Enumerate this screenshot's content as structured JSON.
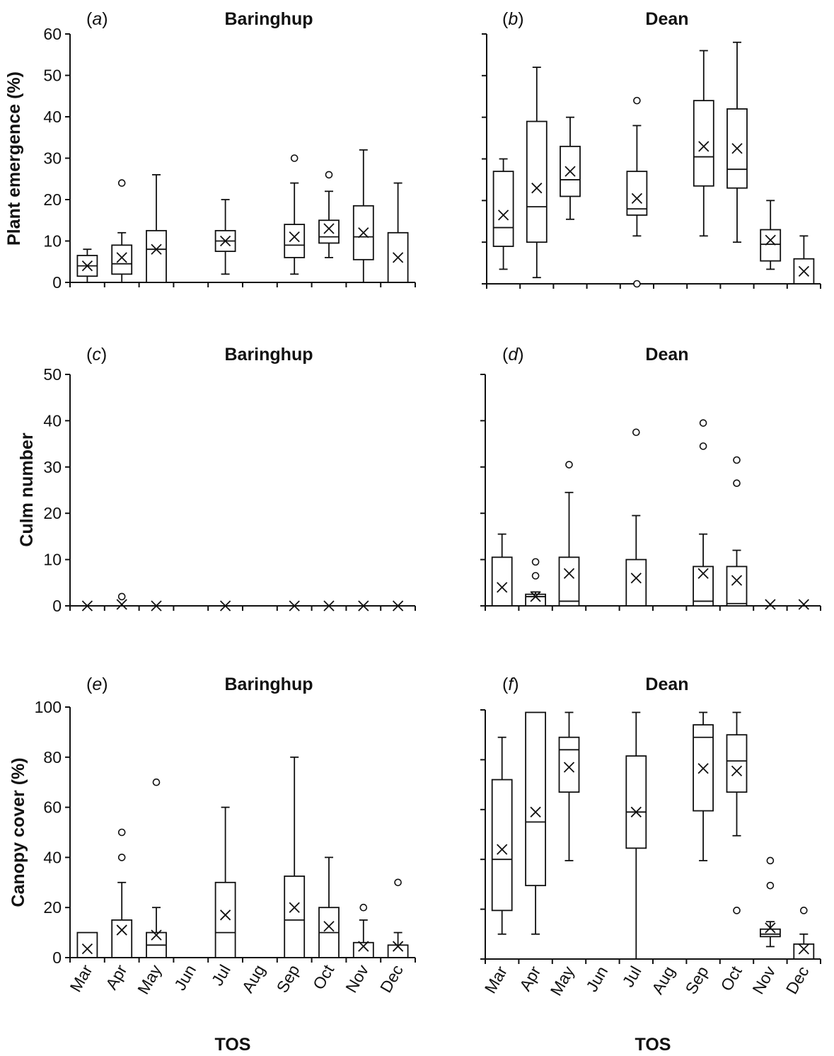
{
  "figure": {
    "xlabel_shared": "TOS"
  },
  "chart_data": [
    {
      "id": "a",
      "panel_label": "a",
      "type": "box",
      "title": "Baringhup",
      "ylabel": "Plant emergence (%)",
      "ylim": [
        0,
        60
      ],
      "yticks": [
        0,
        10,
        20,
        30,
        40,
        50,
        60
      ],
      "show_tick_labels": true,
      "categories": [
        "Mar",
        "Apr",
        "May",
        "Jun",
        "Jul",
        "Aug",
        "Sep",
        "Oct",
        "Nov",
        "Dec"
      ],
      "boxes": [
        {
          "cat": "Mar",
          "min": 0,
          "q1": 1.5,
          "median": 4,
          "q3": 6.5,
          "max": 8,
          "mean": 4,
          "outliers": []
        },
        {
          "cat": "Apr",
          "min": 0,
          "q1": 2,
          "median": 4.5,
          "q3": 9,
          "max": 12,
          "mean": 6,
          "outliers": [
            24
          ]
        },
        {
          "cat": "May",
          "min": 0,
          "q1": 0,
          "median": 8,
          "q3": 12.5,
          "max": 26,
          "mean": 8,
          "outliers": []
        },
        {
          "cat": "Jul",
          "min": 2,
          "q1": 7.5,
          "median": 10,
          "q3": 12.5,
          "max": 20,
          "mean": 10,
          "outliers": []
        },
        {
          "cat": "Sep",
          "min": 2,
          "q1": 6,
          "median": 9,
          "q3": 14,
          "max": 24,
          "mean": 11,
          "outliers": [
            30
          ]
        },
        {
          "cat": "Oct",
          "min": 6,
          "q1": 9.5,
          "median": 11,
          "q3": 15,
          "max": 22,
          "mean": 13,
          "outliers": [
            26
          ]
        },
        {
          "cat": "Nov",
          "min": 0,
          "q1": 5.5,
          "median": 11,
          "q3": 18.5,
          "max": 32,
          "mean": 12,
          "outliers": []
        },
        {
          "cat": "Dec",
          "min": 0,
          "q1": 0,
          "median": 0,
          "q3": 12,
          "max": 24,
          "mean": 6,
          "outliers": []
        }
      ]
    },
    {
      "id": "b",
      "panel_label": "b",
      "type": "box",
      "title": "Dean",
      "ylabel": "",
      "ylim": [
        0,
        60
      ],
      "yticks": [
        0,
        10,
        20,
        30,
        40,
        50,
        60
      ],
      "show_tick_labels": false,
      "categories": [
        "Mar",
        "Apr",
        "May",
        "Jun",
        "Jul",
        "Aug",
        "Sep",
        "Oct",
        "Nov",
        "Dec"
      ],
      "boxes": [
        {
          "cat": "Mar",
          "min": 3.5,
          "q1": 9,
          "median": 13.5,
          "q3": 27,
          "max": 30,
          "mean": 16.5,
          "outliers": []
        },
        {
          "cat": "Apr",
          "min": 1.5,
          "q1": 10,
          "median": 18.5,
          "q3": 39,
          "max": 52,
          "mean": 23,
          "outliers": []
        },
        {
          "cat": "May",
          "min": 15.5,
          "q1": 21,
          "median": 25,
          "q3": 33,
          "max": 40,
          "mean": 27,
          "outliers": []
        },
        {
          "cat": "Jul",
          "min": 11.5,
          "q1": 16.5,
          "median": 18,
          "q3": 27,
          "max": 38,
          "mean": 20.5,
          "outliers": [
            44,
            0
          ]
        },
        {
          "cat": "Sep",
          "min": 11.5,
          "q1": 23.5,
          "median": 30.5,
          "q3": 44,
          "max": 56,
          "mean": 33,
          "outliers": []
        },
        {
          "cat": "Oct",
          "min": 10,
          "q1": 23,
          "median": 27.5,
          "q3": 42,
          "max": 58,
          "mean": 32.5,
          "outliers": []
        },
        {
          "cat": "Nov",
          "min": 3.5,
          "q1": 5.5,
          "median": 9.5,
          "q3": 13,
          "max": 20,
          "mean": 10.5,
          "outliers": []
        },
        {
          "cat": "Dec",
          "min": 0,
          "q1": 0,
          "median": 0,
          "q3": 6,
          "max": 11.5,
          "mean": 3,
          "outliers": []
        }
      ]
    },
    {
      "id": "c",
      "panel_label": "c",
      "type": "box",
      "title": "Baringhup",
      "ylabel": "Culm number",
      "ylim": [
        0,
        50
      ],
      "yticks": [
        0,
        10,
        20,
        30,
        40,
        50
      ],
      "show_tick_labels": true,
      "categories": [
        "Mar",
        "Apr",
        "May",
        "Jun",
        "Jul",
        "Aug",
        "Sep",
        "Oct",
        "Nov",
        "Dec"
      ],
      "boxes": [
        {
          "cat": "Mar",
          "min": 0,
          "q1": 0,
          "median": 0,
          "q3": 0,
          "max": 0,
          "mean": 0,
          "outliers": []
        },
        {
          "cat": "Apr",
          "min": 0,
          "q1": 0,
          "median": 0,
          "q3": 0,
          "max": 0,
          "mean": 0.3,
          "outliers": [
            2
          ]
        },
        {
          "cat": "May",
          "min": 0,
          "q1": 0,
          "median": 0,
          "q3": 0,
          "max": 0,
          "mean": 0,
          "outliers": []
        },
        {
          "cat": "Jul",
          "min": 0,
          "q1": 0,
          "median": 0,
          "q3": 0,
          "max": 0,
          "mean": 0,
          "outliers": []
        },
        {
          "cat": "Sep",
          "min": 0,
          "q1": 0,
          "median": 0,
          "q3": 0,
          "max": 0,
          "mean": 0,
          "outliers": []
        },
        {
          "cat": "Oct",
          "min": 0,
          "q1": 0,
          "median": 0,
          "q3": 0,
          "max": 0,
          "mean": 0,
          "outliers": []
        },
        {
          "cat": "Nov",
          "min": 0,
          "q1": 0,
          "median": 0,
          "q3": 0,
          "max": 0,
          "mean": 0,
          "outliers": []
        },
        {
          "cat": "Dec",
          "min": 0,
          "q1": 0,
          "median": 0,
          "q3": 0,
          "max": 0,
          "mean": 0,
          "outliers": []
        }
      ]
    },
    {
      "id": "d",
      "panel_label": "d",
      "type": "box",
      "title": "Dean",
      "ylabel": "",
      "ylim": [
        0,
        50
      ],
      "yticks": [
        0,
        10,
        20,
        30,
        40,
        50
      ],
      "show_tick_labels": false,
      "categories": [
        "Mar",
        "Apr",
        "May",
        "Jun",
        "Jul",
        "Aug",
        "Sep",
        "Oct",
        "Nov",
        "Dec"
      ],
      "boxes": [
        {
          "cat": "Mar",
          "min": 0,
          "q1": 0,
          "median": 0,
          "q3": 10.5,
          "max": 15.5,
          "mean": 4,
          "outliers": []
        },
        {
          "cat": "Apr",
          "min": 0,
          "q1": 0,
          "median": 2,
          "q3": 2.5,
          "max": 3,
          "mean": 2,
          "outliers": [
            9.5,
            6.5
          ]
        },
        {
          "cat": "May",
          "min": 0,
          "q1": 0,
          "median": 1,
          "q3": 10.5,
          "max": 24.5,
          "mean": 7,
          "outliers": [
            30.5
          ]
        },
        {
          "cat": "Jul",
          "min": 0,
          "q1": 0,
          "median": 0,
          "q3": 10,
          "max": 19.5,
          "mean": 6,
          "outliers": [
            37.5
          ]
        },
        {
          "cat": "Sep",
          "min": 0,
          "q1": 0,
          "median": 1,
          "q3": 8.5,
          "max": 15.5,
          "mean": 7,
          "outliers": [
            39.5,
            34.5
          ]
        },
        {
          "cat": "Oct",
          "min": 0,
          "q1": 0,
          "median": 0.5,
          "q3": 8.5,
          "max": 12,
          "mean": 5.5,
          "outliers": [
            31.5,
            26.5
          ]
        },
        {
          "cat": "Nov",
          "min": 0,
          "q1": 0,
          "median": 0,
          "q3": 0,
          "max": 0,
          "mean": 0.3,
          "outliers": []
        },
        {
          "cat": "Dec",
          "min": 0,
          "q1": 0,
          "median": 0,
          "q3": 0,
          "max": 0,
          "mean": 0.3,
          "outliers": []
        }
      ]
    },
    {
      "id": "e",
      "panel_label": "e",
      "type": "box",
      "title": "Baringhup",
      "ylabel": "Canopy cover (%)",
      "ylim": [
        0,
        100
      ],
      "yticks": [
        0,
        20,
        40,
        60,
        80,
        100
      ],
      "show_tick_labels": true,
      "categories": [
        "Mar",
        "Apr",
        "May",
        "Jun",
        "Jul",
        "Aug",
        "Sep",
        "Oct",
        "Nov",
        "Dec"
      ],
      "boxes": [
        {
          "cat": "Mar",
          "min": 0,
          "q1": 0,
          "median": 0,
          "q3": 10,
          "max": 10,
          "mean": 3.5,
          "outliers": []
        },
        {
          "cat": "Apr",
          "min": 0,
          "q1": 0,
          "median": 0,
          "q3": 15,
          "max": 30,
          "mean": 11,
          "outliers": [
            50,
            40
          ]
        },
        {
          "cat": "May",
          "min": 0,
          "q1": 0,
          "median": 5,
          "q3": 10,
          "max": 20,
          "mean": 9,
          "outliers": [
            70
          ]
        },
        {
          "cat": "Jul",
          "min": 0,
          "q1": 0,
          "median": 10,
          "q3": 30,
          "max": 60,
          "mean": 17,
          "outliers": []
        },
        {
          "cat": "Sep",
          "min": 0,
          "q1": 0,
          "median": 15,
          "q3": 32.5,
          "max": 80,
          "mean": 20,
          "outliers": []
        },
        {
          "cat": "Oct",
          "min": 0,
          "q1": 0,
          "median": 10,
          "q3": 20,
          "max": 40,
          "mean": 12.5,
          "outliers": []
        },
        {
          "cat": "Nov",
          "min": 0,
          "q1": 0,
          "median": 0,
          "q3": 6,
          "max": 15,
          "mean": 4.5,
          "outliers": [
            20
          ]
        },
        {
          "cat": "Dec",
          "min": 0,
          "q1": 0,
          "median": 0,
          "q3": 5,
          "max": 10,
          "mean": 4.5,
          "outliers": [
            30
          ]
        }
      ]
    },
    {
      "id": "f",
      "panel_label": "f",
      "type": "box",
      "title": "Dean",
      "ylabel": "",
      "ylim": [
        0,
        100
      ],
      "yticks": [
        0,
        20,
        40,
        60,
        80,
        100
      ],
      "show_tick_labels": false,
      "categories": [
        "Mar",
        "Apr",
        "May",
        "Jun",
        "Jul",
        "Aug",
        "Sep",
        "Oct",
        "Nov",
        "Dec"
      ],
      "boxes": [
        {
          "cat": "Mar",
          "min": 10,
          "q1": 19.5,
          "median": 40,
          "q3": 72,
          "max": 89,
          "mean": 44,
          "outliers": []
        },
        {
          "cat": "Apr",
          "min": 10,
          "q1": 29.5,
          "median": 55,
          "q3": 99,
          "max": 99,
          "mean": 59,
          "outliers": []
        },
        {
          "cat": "May",
          "min": 39.5,
          "q1": 67,
          "median": 84,
          "q3": 89,
          "max": 99,
          "mean": 77,
          "outliers": []
        },
        {
          "cat": "Jul",
          "min": 0,
          "q1": 44.5,
          "median": 59,
          "q3": 81.5,
          "max": 99,
          "mean": 59,
          "outliers": []
        },
        {
          "cat": "Sep",
          "min": 39.5,
          "q1": 59.5,
          "median": 89,
          "q3": 94,
          "max": 99,
          "mean": 76.5,
          "outliers": []
        },
        {
          "cat": "Oct",
          "min": 49.5,
          "q1": 67,
          "median": 79.5,
          "q3": 90,
          "max": 99,
          "mean": 75.5,
          "outliers": [
            19.5
          ]
        },
        {
          "cat": "Nov",
          "min": 5,
          "q1": 9,
          "median": 10,
          "q3": 12,
          "max": 15,
          "mean": 12.5,
          "outliers": [
            39.5,
            29.5
          ]
        },
        {
          "cat": "Dec",
          "min": 0,
          "q1": 0,
          "median": 0,
          "q3": 6,
          "max": 10,
          "mean": 4,
          "outliers": [
            19.5
          ]
        }
      ]
    }
  ]
}
